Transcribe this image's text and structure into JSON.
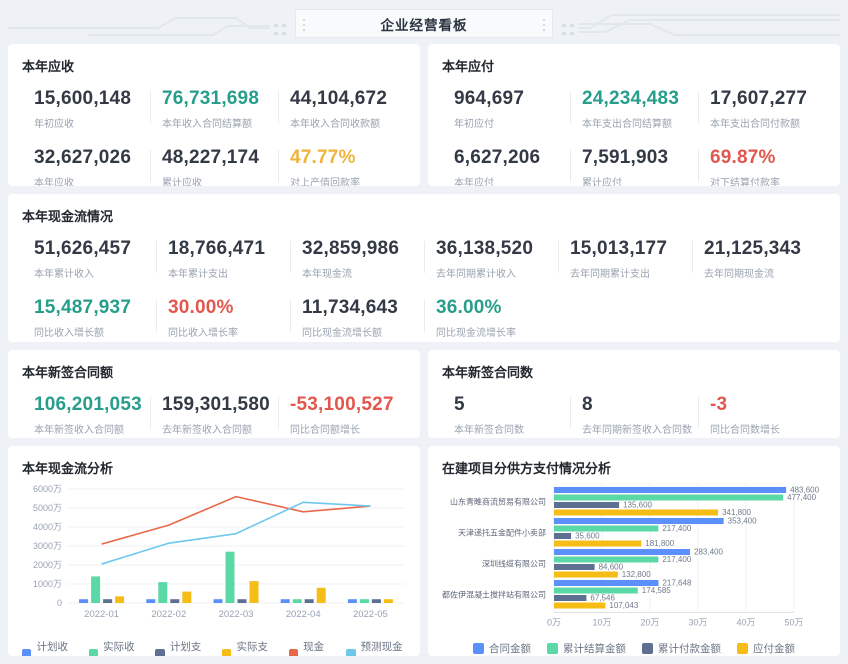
{
  "header": {
    "title": "企业经营看板"
  },
  "colors": {
    "teal": "#279E8C",
    "red": "#E2574E",
    "amber": "#F0B43C",
    "series_blue": "#5B8FF9",
    "series_green": "#5AD8A6",
    "series_slate": "#5D7092",
    "series_yellow": "#F6BD16",
    "line_red": "#E8684A",
    "line_lightblue": "#6DC8EC"
  },
  "cards": {
    "receivable": {
      "title": "本年应收",
      "metrics": [
        {
          "value": "15,600,148",
          "label": "年初应收",
          "tone": "default"
        },
        {
          "value": "76,731,698",
          "label": "本年收入合同结算额",
          "tone": "teal"
        },
        {
          "value": "44,104,672",
          "label": "本年收入合同收款额",
          "tone": "default"
        },
        {
          "value": "32,627,026",
          "label": "本年应收",
          "tone": "default"
        },
        {
          "value": "48,227,174",
          "label": "累计应收",
          "tone": "default"
        },
        {
          "value": "47.77%",
          "label": "对上产值回款率",
          "tone": "amber"
        }
      ]
    },
    "payable": {
      "title": "本年应付",
      "metrics": [
        {
          "value": "964,697",
          "label": "年初应付",
          "tone": "default"
        },
        {
          "value": "24,234,483",
          "label": "本年支出合同结算额",
          "tone": "teal"
        },
        {
          "value": "17,607,277",
          "label": "本年支出合同付款额",
          "tone": "default"
        },
        {
          "value": "6,627,206",
          "label": "本年应付",
          "tone": "default"
        },
        {
          "value": "7,591,903",
          "label": "累计应付",
          "tone": "default"
        },
        {
          "value": "69.87%",
          "label": "对下结算付款率",
          "tone": "red"
        }
      ]
    },
    "cashflow": {
      "title": "本年现金流情况",
      "metrics": [
        {
          "value": "51,626,457",
          "label": "本年累计收入",
          "tone": "default"
        },
        {
          "value": "18,766,471",
          "label": "本年累计支出",
          "tone": "default"
        },
        {
          "value": "32,859,986",
          "label": "本年现金流",
          "tone": "default"
        },
        {
          "value": "36,138,520",
          "label": "去年同期累计收入",
          "tone": "default"
        },
        {
          "value": "15,013,177",
          "label": "去年同期累计支出",
          "tone": "default"
        },
        {
          "value": "21,125,343",
          "label": "去年同期现金流",
          "tone": "default"
        },
        {
          "value": "15,487,937",
          "label": "同比收入增长额",
          "tone": "teal"
        },
        {
          "value": "30.00%",
          "label": "同比收入增长率",
          "tone": "red"
        },
        {
          "value": "11,734,643",
          "label": "同比现金流增长额",
          "tone": "default"
        },
        {
          "value": "36.00%",
          "label": "同比现金流增长率",
          "tone": "teal"
        }
      ]
    },
    "contract_amount": {
      "title": "本年新签合同额",
      "metrics": [
        {
          "value": "106,201,053",
          "label": "本年新签收入合同额",
          "tone": "teal"
        },
        {
          "value": "159,301,580",
          "label": "去年新签收入合同额",
          "tone": "default"
        },
        {
          "value": "-53,100,527",
          "label": "同比合同额增长",
          "tone": "red"
        }
      ]
    },
    "contract_count": {
      "title": "本年新签合同数",
      "metrics": [
        {
          "value": "5",
          "label": "本年新签合同数",
          "tone": "default"
        },
        {
          "value": "8",
          "label": "去年同期新签收入合同数",
          "tone": "default"
        },
        {
          "value": "-3",
          "label": "同比合同数增长",
          "tone": "red"
        }
      ]
    }
  },
  "chart_data": [
    {
      "type": "combo",
      "title": "本年现金流分析",
      "categories": [
        "2022-01",
        "2022-02",
        "2022-03",
        "2022-04",
        "2022-05"
      ],
      "unit": "万",
      "ylim": [
        0,
        6000
      ],
      "yticks": [
        "0",
        "1000万",
        "2000万",
        "3000万",
        "4000万",
        "5000万",
        "6000万"
      ],
      "grid": true,
      "legend_position": "bottom",
      "series": [
        {
          "name": "计划收入",
          "kind": "bar",
          "color": "#5B8FF9",
          "values": [
            200,
            200,
            200,
            200,
            200
          ]
        },
        {
          "name": "实际收入",
          "kind": "bar",
          "color": "#5AD8A6",
          "values": [
            1400,
            1100,
            2700,
            200,
            200
          ]
        },
        {
          "name": "计划支出",
          "kind": "bar",
          "color": "#5D7092",
          "values": [
            200,
            200,
            200,
            200,
            200
          ]
        },
        {
          "name": "实际支出",
          "kind": "bar",
          "color": "#F6BD16",
          "values": [
            350,
            600,
            1150,
            800,
            200
          ]
        },
        {
          "name": "现金流",
          "kind": "line",
          "color": "#E8684A",
          "values": [
            3100,
            4100,
            5600,
            4800,
            5100
          ]
        },
        {
          "name": "预测现金流",
          "kind": "line",
          "color": "#6DC8EC",
          "values": [
            2050,
            3150,
            3650,
            5300,
            5100
          ]
        }
      ]
    },
    {
      "type": "horizontal-grouped-bar",
      "title": "在建项目分供方支付情况分析",
      "categories": [
        "山东青睢商流贸易有限公司",
        "天津递托五金配件小卖部",
        "深圳线缆有限公司",
        "成都佐伊混凝土搅拌站有限公司"
      ],
      "xlim": [
        0,
        500000
      ],
      "xticks": [
        "0万",
        "10万",
        "20万",
        "30万",
        "40万",
        "50万"
      ],
      "grid": true,
      "legend_position": "bottom",
      "series": [
        {
          "name": "合同金额",
          "color": "#5B8FF9",
          "values": [
            483600,
            353400,
            283400,
            217648
          ]
        },
        {
          "name": "累计结算金额",
          "color": "#5AD8A6",
          "values": [
            477400,
            217400,
            217400,
            174585
          ]
        },
        {
          "name": "累计付款金额",
          "color": "#5D7092",
          "values": [
            135600,
            35600,
            84600,
            67546
          ]
        },
        {
          "name": "应付金额",
          "color": "#F6BD16",
          "values": [
            341800,
            181800,
            132800,
            107043
          ]
        }
      ]
    }
  ]
}
